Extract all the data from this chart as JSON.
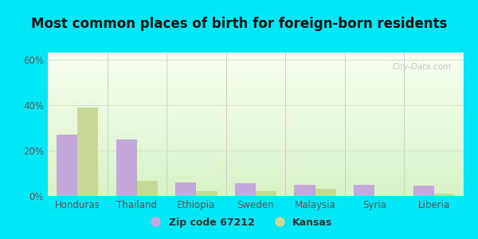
{
  "title": "Most common places of birth for foreign-born residents",
  "categories": [
    "Honduras",
    "Thailand",
    "Ethiopia",
    "Sweden",
    "Malaysia",
    "Syria",
    "Liberia"
  ],
  "zip_values": [
    27,
    25,
    6,
    5.5,
    5,
    5,
    4.5
  ],
  "kansas_values": [
    39,
    6.5,
    2,
    2,
    3,
    0,
    1
  ],
  "zip_color": "#c4a8dc",
  "kansas_color": "#c8d896",
  "bar_width": 0.35,
  "ylim": [
    0,
    63
  ],
  "yticks": [
    0,
    20,
    40,
    60
  ],
  "ytick_labels": [
    "0%",
    "20%",
    "40%",
    "60%"
  ],
  "legend_zip_label": "Zip code 67212",
  "legend_kansas_label": "Kansas",
  "background_outer": "#00e8f8",
  "background_inner": "#e8f5e0",
  "title_fontsize": 12,
  "axis_label_fontsize": 8.5,
  "legend_fontsize": 9,
  "watermark": "City-Data.com",
  "figure_width": 6.0,
  "figure_height": 3.0,
  "figure_dpi": 100
}
